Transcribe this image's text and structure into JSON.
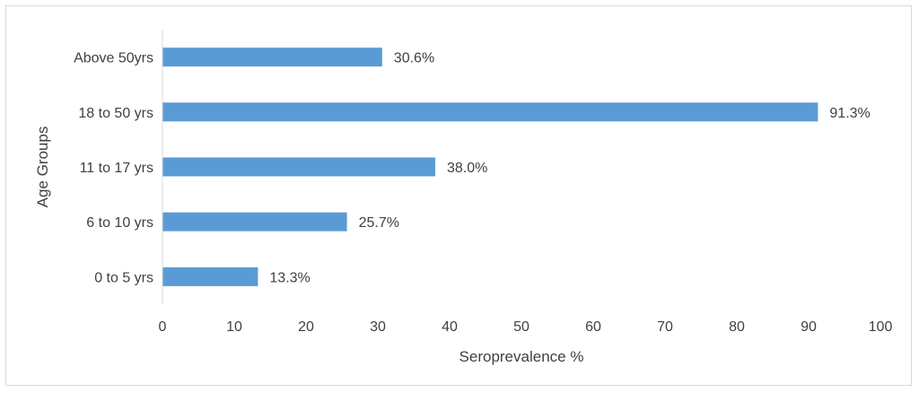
{
  "chart_data": {
    "type": "bar",
    "orientation": "horizontal",
    "title": "",
    "xlabel": "Seroprevalence %",
    "ylabel": "Age Groups",
    "categories": [
      "0 to 5 yrs",
      "6 to 10 yrs",
      "11 to 17 yrs",
      "18 to 50 yrs",
      "Above 50yrs"
    ],
    "values": [
      13.3,
      25.7,
      38.0,
      91.3,
      30.6
    ],
    "data_labels": [
      "13.3%",
      "25.7%",
      "38.0%",
      "91.3%",
      "30.6%"
    ],
    "xlim": [
      0,
      100
    ],
    "xticks": [
      0,
      10,
      20,
      30,
      40,
      50,
      60,
      70,
      80,
      90,
      100
    ],
    "grid": false,
    "legend": "none",
    "bar_color": "#5b9bd5"
  }
}
